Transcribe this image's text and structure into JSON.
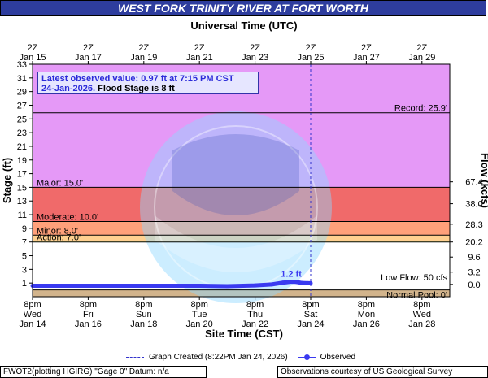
{
  "title": "WEST FORK TRINITY RIVER AT FORT WORTH",
  "colors": {
    "title_bg": "#2e3d9e",
    "record_zone": "#e599f7",
    "major_zone": "#f06a6a",
    "moderate_zone": "#ffa07a",
    "minor_zone": "#ffd090",
    "action_zone": "#ffff99",
    "normal_pool_zone": "#d2b48c",
    "observed_line": "#3a3af0",
    "info_box_bg": "#e6e6ff"
  },
  "chart_data": {
    "type": "line",
    "top_axis_title": "Universal Time (UTC)",
    "top_ticks": [
      {
        "hour": "2Z",
        "date": "Jan 15"
      },
      {
        "hour": "2Z",
        "date": "Jan 17"
      },
      {
        "hour": "2Z",
        "date": "Jan 19"
      },
      {
        "hour": "2Z",
        "date": "Jan 21"
      },
      {
        "hour": "2Z",
        "date": "Jan 23"
      },
      {
        "hour": "2Z",
        "date": "Jan 25"
      },
      {
        "hour": "2Z",
        "date": "Jan 27"
      },
      {
        "hour": "2Z",
        "date": "Jan 29"
      }
    ],
    "bottom_axis_title": "Site Time (CST)",
    "bottom_ticks": [
      {
        "time": "8pm",
        "day": "Wed",
        "date": "Jan 14"
      },
      {
        "time": "8pm",
        "day": "Fri",
        "date": "Jan 16"
      },
      {
        "time": "8pm",
        "day": "Sun",
        "date": "Jan 18"
      },
      {
        "time": "8pm",
        "day": "Tue",
        "date": "Jan 20"
      },
      {
        "time": "8pm",
        "day": "Thu",
        "date": "Jan 22"
      },
      {
        "time": "8pm",
        "day": "Sat",
        "date": "Jan 24"
      },
      {
        "time": "8pm",
        "day": "Mon",
        "date": "Jan 26"
      },
      {
        "time": "8pm",
        "day": "Wed",
        "date": "Jan 28"
      }
    ],
    "x_range_days": [
      0,
      15
    ],
    "left_axis_title": "Stage (ft)",
    "ylim": [
      -1,
      33
    ],
    "left_ticks": [
      1,
      3,
      5,
      7,
      9,
      11,
      13,
      15,
      17,
      19,
      21,
      23,
      25,
      27,
      29,
      31,
      33
    ],
    "right_axis_title": "Flow (kcfs)",
    "right_ticks": [
      {
        "stage": 15.8,
        "label": "67.4"
      },
      {
        "stage": 12.6,
        "label": "38.0"
      },
      {
        "stage": 9.6,
        "label": "28.3"
      },
      {
        "stage": 7.0,
        "label": "20.2"
      },
      {
        "stage": 4.8,
        "label": "9.6"
      },
      {
        "stage": 2.6,
        "label": "3.2"
      },
      {
        "stage": 0.8,
        "label": "0.0"
      }
    ],
    "zones": [
      {
        "name": "Record",
        "from": 15,
        "to": 33
      },
      {
        "name": "Major",
        "from": 10,
        "to": 15
      },
      {
        "name": "Moderate",
        "from": 8,
        "to": 10
      },
      {
        "name": "Minor",
        "from": 7,
        "to": 8
      },
      {
        "name": "Action",
        "from": 7,
        "to": 7.2
      },
      {
        "name": "Normal",
        "from": -1,
        "to": 0
      }
    ],
    "thresholds": [
      {
        "label": "Record: 25.9'",
        "value": 25.9,
        "side": "right"
      },
      {
        "label": "Major: 15.0'",
        "value": 15.0,
        "side": "left"
      },
      {
        "label": "Moderate: 10.0'",
        "value": 10.0,
        "side": "left"
      },
      {
        "label": "Minor: 8.0'",
        "value": 8.0,
        "side": "left"
      },
      {
        "label": "Action: 7.0'",
        "value": 7.0,
        "side": "left"
      },
      {
        "label": "Low Flow: 50 cfs",
        "value": 1.15,
        "side": "right"
      },
      {
        "label": "Normal Pool: 0'",
        "value": 0.0,
        "side": "right"
      }
    ],
    "graph_created_day": 10.0,
    "observed": {
      "x": [
        0,
        1,
        2,
        3,
        4,
        5,
        6,
        7,
        8,
        8.6,
        9.0,
        9.3,
        9.5,
        9.7,
        9.9,
        10.0
      ],
      "y": [
        0.6,
        0.6,
        0.6,
        0.6,
        0.6,
        0.6,
        0.6,
        0.55,
        0.65,
        0.8,
        1.05,
        1.2,
        1.15,
        1.0,
        0.97,
        0.97
      ]
    },
    "peak_label": "1.2 ft",
    "peak_at": {
      "x": 9.3,
      "y": 1.2
    }
  },
  "info_box": {
    "latest": "Latest observed value: 0.97 ft at 7:15 PM CST",
    "date": "24-Jan-2026.",
    "flood": "Flood Stage is 8 ft"
  },
  "footer": {
    "graph_created": "Graph Created (8:22PM Jan 24, 2026)",
    "observed": "Observed",
    "station": "FWOT2(plotting HGIRG) \"Gage 0\" Datum: n/a",
    "credit": "Observations courtesy of US Geological Survey"
  }
}
